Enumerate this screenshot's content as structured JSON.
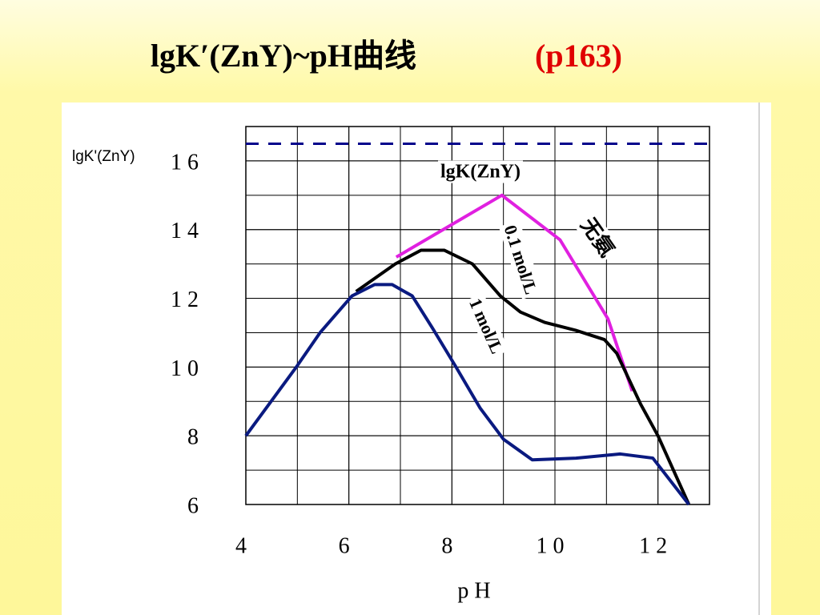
{
  "chart_data": {
    "type": "line",
    "title": "lgK′(ZnY)~pH曲线",
    "title_ref": "(p163)",
    "y_label": "lgK'(ZnY)",
    "x_label": "p H",
    "xlim": [
      4,
      13
    ],
    "ylim": [
      6,
      17
    ],
    "xticks": [
      4,
      6,
      8,
      {
        "value": 10,
        "label": "1 0"
      },
      {
        "value": 12,
        "label": "1 2"
      }
    ],
    "yticks": [
      6,
      8,
      {
        "value": 10,
        "label": "1 0"
      },
      {
        "value": 12,
        "label": "1 2"
      },
      {
        "value": 14,
        "label": "1 4"
      },
      {
        "value": 16,
        "label": "1 6"
      }
    ],
    "grid": true,
    "series": [
      {
        "name": "lgK(ZnY)",
        "color": "#00008b",
        "dash": true,
        "x": [
          4,
          13
        ],
        "values": [
          16.5,
          16.5
        ]
      },
      {
        "name": "无氨",
        "color": "#e020e0",
        "x": [
          6.92,
          8.97,
          10.1,
          11.03,
          11.5
        ],
        "values": [
          13.2,
          15.0,
          13.7,
          11.4,
          9.3
        ]
      },
      {
        "name": "0.1 mol/L",
        "color": "#000000",
        "x": [
          6.14,
          6.9,
          7.4,
          7.85,
          8.4,
          8.94,
          9.33,
          9.8,
          10.4,
          10.96,
          11.2,
          11.66,
          12.0,
          12.6
        ],
        "values": [
          12.2,
          13.0,
          13.4,
          13.4,
          13.0,
          12.07,
          11.6,
          11.3,
          11.07,
          10.8,
          10.4,
          8.93,
          8.0,
          6.0
        ]
      },
      {
        "name": "1 mol/L",
        "color": "#0a1a80",
        "x": [
          4,
          4.98,
          5.44,
          6.06,
          6.5,
          6.84,
          7.23,
          7.62,
          8.08,
          8.55,
          9.0,
          9.56,
          10.41,
          11.27,
          11.9,
          12.6
        ],
        "values": [
          8.0,
          10.0,
          11.0,
          12.07,
          12.4,
          12.4,
          12.07,
          11.14,
          10.0,
          8.8,
          7.9,
          7.3,
          7.35,
          7.47,
          7.35,
          6.0
        ]
      }
    ]
  }
}
